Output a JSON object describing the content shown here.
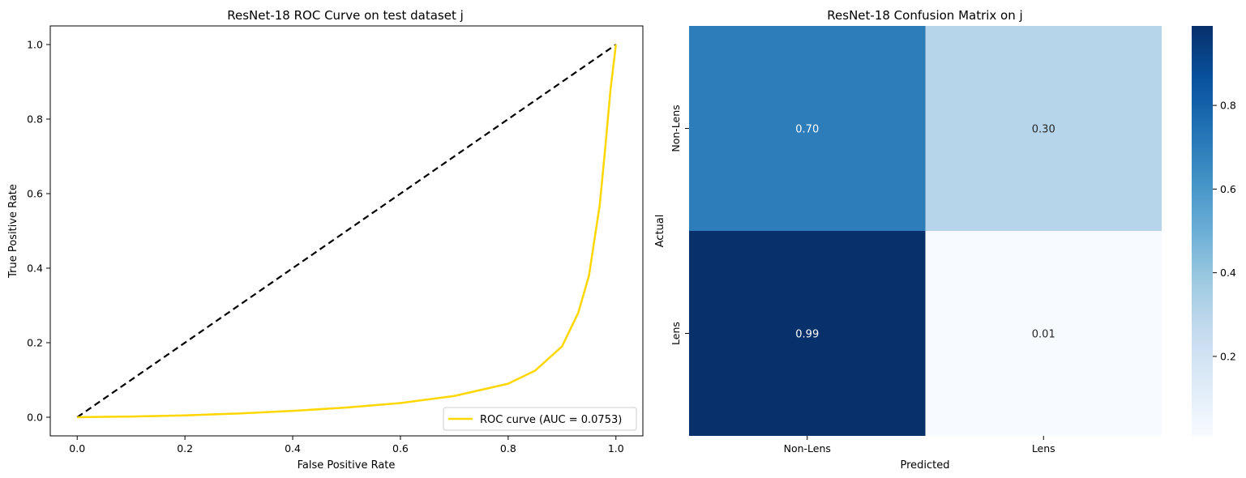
{
  "chart_data": [
    {
      "type": "line",
      "title": "ResNet-18 ROC Curve on test dataset j",
      "xlabel": "False Positive Rate",
      "ylabel": "True Positive Rate",
      "xlim": [
        -0.05,
        1.05
      ],
      "ylim": [
        -0.05,
        1.05
      ],
      "xticks": [
        "0.0",
        "0.2",
        "0.4",
        "0.6",
        "0.8",
        "1.0"
      ],
      "yticks": [
        "0.0",
        "0.2",
        "0.4",
        "0.6",
        "0.8",
        "1.0"
      ],
      "legend_position": "lower-right",
      "grid": false,
      "series": [
        {
          "name": "ROC curve (AUC = 0.0753)",
          "color": "#FFD700",
          "x": [
            0.0,
            0.1,
            0.2,
            0.3,
            0.4,
            0.5,
            0.6,
            0.7,
            0.8,
            0.85,
            0.9,
            0.93,
            0.95,
            0.97,
            0.98,
            0.99,
            1.0
          ],
          "y": [
            0.0,
            0.002,
            0.005,
            0.01,
            0.017,
            0.026,
            0.038,
            0.057,
            0.09,
            0.125,
            0.19,
            0.28,
            0.38,
            0.57,
            0.72,
            0.88,
            1.0
          ]
        },
        {
          "name": "",
          "color": "#000000",
          "style": "dashed",
          "x": [
            0.0,
            1.0
          ],
          "y": [
            0.0,
            1.0
          ]
        }
      ]
    },
    {
      "type": "heatmap",
      "title": "ResNet-18 Confusion Matrix on j",
      "xlabel": "Predicted",
      "ylabel": "Actual",
      "x_categories": [
        "Non-Lens",
        "Lens"
      ],
      "y_categories": [
        "Non-Lens",
        "Lens"
      ],
      "values": [
        [
          0.7,
          0.3
        ],
        [
          0.99,
          0.01
        ]
      ],
      "value_labels": [
        [
          "0.70",
          "0.30"
        ],
        [
          "0.99",
          "0.01"
        ]
      ],
      "colormap": "Blues",
      "colorbar_range": [
        0.01,
        0.99
      ],
      "colorbar_ticks": [
        "0.2",
        "0.4",
        "0.6",
        "0.8"
      ]
    }
  ]
}
